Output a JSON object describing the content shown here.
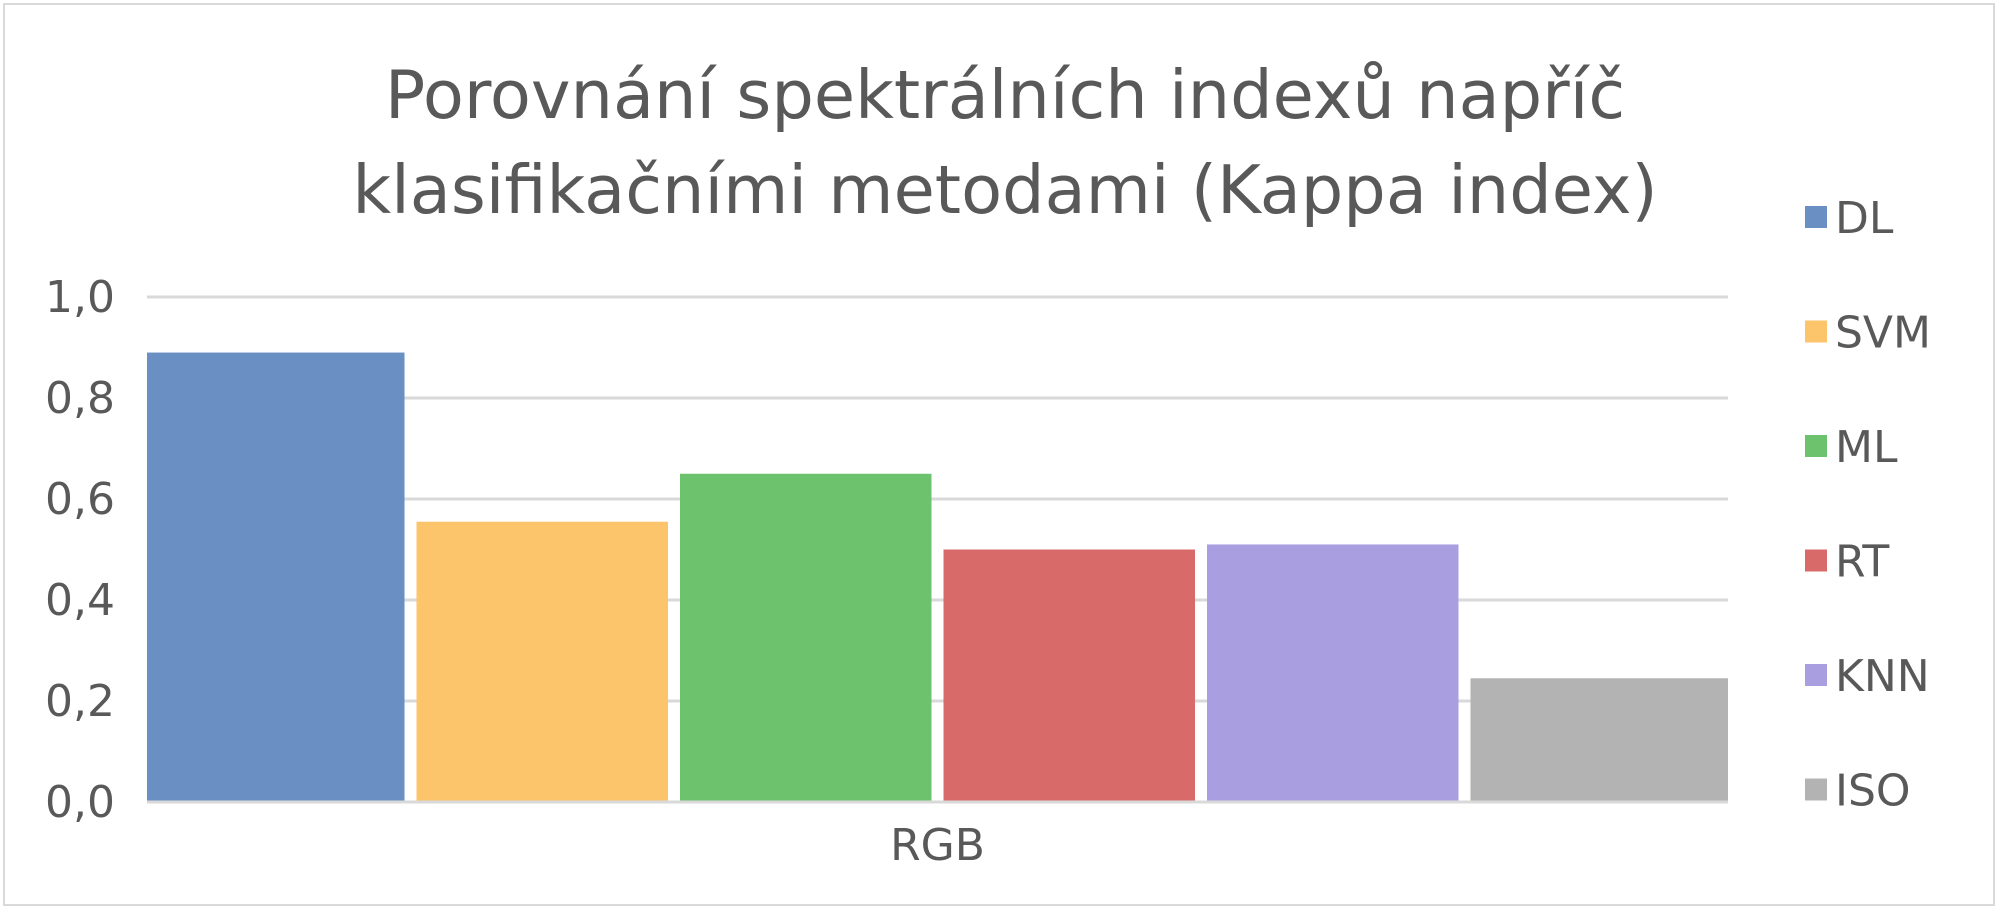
{
  "chart_data": {
    "type": "bar",
    "title_lines": [
      "Porovnání spektrálních indexů napříč",
      "klasifikačními metodami (Kappa index)"
    ],
    "categories": [
      "RGB"
    ],
    "series": [
      {
        "name": "DL",
        "values": [
          0.89
        ],
        "color": "#6a8fc2"
      },
      {
        "name": "SVM",
        "values": [
          0.555
        ],
        "color": "#fdc56b"
      },
      {
        "name": "ML",
        "values": [
          0.65
        ],
        "color": "#6dc26d"
      },
      {
        "name": "RT",
        "values": [
          0.5
        ],
        "color": "#d86a6a"
      },
      {
        "name": "KNN",
        "values": [
          0.51
        ],
        "color": "#a89ee0"
      },
      {
        "name": "ISO",
        "values": [
          0.245
        ],
        "color": "#b3b3b3"
      }
    ],
    "ylim": [
      0,
      1.0
    ],
    "yticks": [
      "0,0",
      "0,2",
      "0,4",
      "0,6",
      "0,8",
      "1,0"
    ],
    "grid": true,
    "legend_position": "right",
    "colors": {
      "gridline": "#d9d9d9",
      "text": "#595959",
      "axis": "#d9d9d9"
    }
  }
}
